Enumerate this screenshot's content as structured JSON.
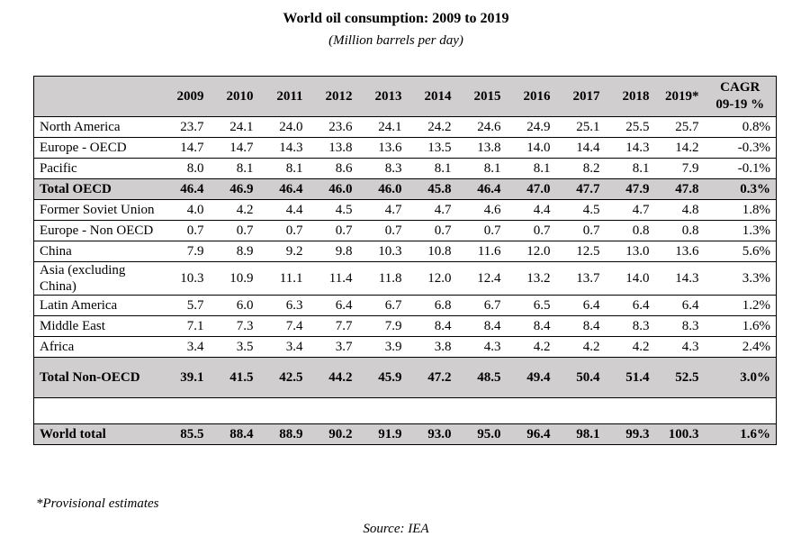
{
  "title": "World oil consumption: 2009 to 2019",
  "subtitle": "(Million barrels per day)",
  "table": {
    "columns": [
      "2009",
      "2010",
      "2011",
      "2012",
      "2013",
      "2014",
      "2015",
      "2016",
      "2017",
      "2018",
      "2019*",
      "CAGR 09-19 %"
    ],
    "rows": [
      {
        "cells": [
          "North America",
          "23.7",
          "24.1",
          "24.0",
          "23.6",
          "24.1",
          "24.2",
          "24.6",
          "24.9",
          "25.1",
          "25.5",
          "25.7",
          "0.8%"
        ]
      },
      {
        "cells": [
          "Europe - OECD",
          "14.7",
          "14.7",
          "14.3",
          "13.8",
          "13.6",
          "13.5",
          "13.8",
          "14.0",
          "14.4",
          "14.3",
          "14.2",
          "-0.3%"
        ]
      },
      {
        "cells": [
          "Pacific",
          "8.0",
          "8.1",
          "8.1",
          "8.6",
          "8.3",
          "8.1",
          "8.1",
          "8.1",
          "8.2",
          "8.1",
          "7.9",
          "-0.1%"
        ]
      },
      {
        "cells": [
          "Total OECD",
          "46.4",
          "46.9",
          "46.4",
          "46.0",
          "46.0",
          "45.8",
          "46.4",
          "47.0",
          "47.7",
          "47.9",
          "47.8",
          "0.3%"
        ],
        "total": true
      },
      {
        "cells": [
          "Former Soviet Union",
          "4.0",
          "4.2",
          "4.4",
          "4.5",
          "4.7",
          "4.7",
          "4.6",
          "4.4",
          "4.5",
          "4.7",
          "4.8",
          "1.8%"
        ]
      },
      {
        "cells": [
          "Europe - Non OECD",
          "0.7",
          "0.7",
          "0.7",
          "0.7",
          "0.7",
          "0.7",
          "0.7",
          "0.7",
          "0.7",
          "0.8",
          "0.8",
          "1.3%"
        ]
      },
      {
        "cells": [
          "China",
          "7.9",
          "8.9",
          "9.2",
          "9.8",
          "10.3",
          "10.8",
          "11.6",
          "12.0",
          "12.5",
          "13.0",
          "13.6",
          "5.6%"
        ]
      },
      {
        "cells": [
          "Asia (excluding China)",
          "10.3",
          "10.9",
          "11.1",
          "11.4",
          "11.8",
          "12.0",
          "12.4",
          "13.2",
          "13.7",
          "14.0",
          "14.3",
          "3.3%"
        ]
      },
      {
        "cells": [
          "Latin America",
          "5.7",
          "6.0",
          "6.3",
          "6.4",
          "6.7",
          "6.8",
          "6.7",
          "6.5",
          "6.4",
          "6.4",
          "6.4",
          "1.2%"
        ]
      },
      {
        "cells": [
          "Middle East",
          "7.1",
          "7.3",
          "7.4",
          "7.7",
          "7.9",
          "8.4",
          "8.4",
          "8.4",
          "8.4",
          "8.3",
          "8.3",
          "1.6%"
        ]
      },
      {
        "cells": [
          "Africa",
          "3.4",
          "3.5",
          "3.4",
          "3.7",
          "3.9",
          "3.8",
          "4.3",
          "4.2",
          "4.2",
          "4.2",
          "4.3",
          "2.4%"
        ]
      },
      {
        "cells": [
          "Total Non-OECD",
          "39.1",
          "41.5",
          "42.5",
          "44.2",
          "45.9",
          "47.2",
          "48.5",
          "49.4",
          "50.4",
          "51.4",
          "52.5",
          "3.0%"
        ],
        "total": true,
        "tall": true
      },
      {
        "cells": [
          "World total",
          "85.5",
          "88.4",
          "88.9",
          "90.2",
          "91.9",
          "93.0",
          "95.0",
          "96.4",
          "98.1",
          "99.3",
          "100.3",
          "1.6%"
        ],
        "total": true,
        "spaced": true
      }
    ]
  },
  "footnote": "*Provisional estimates",
  "source": "Source: IEA"
}
